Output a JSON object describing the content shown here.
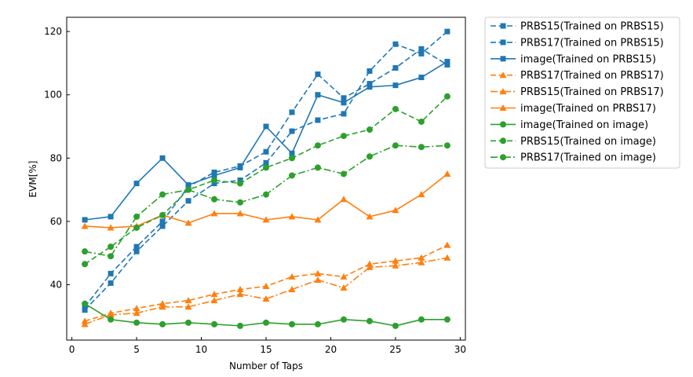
{
  "chart_data": {
    "type": "line",
    "xlabel": "Number of Taps",
    "ylabel": "EVM[%]",
    "xlim": [
      -0.4,
      30.4
    ],
    "ylim": [
      22.5,
      124.5
    ],
    "xticks": [
      0,
      5,
      10,
      15,
      20,
      25,
      30
    ],
    "yticks": [
      40,
      60,
      80,
      100,
      120
    ],
    "grid": false,
    "legend_position": "outside-right",
    "x": [
      1,
      3,
      5,
      7,
      9,
      11,
      13,
      15,
      17,
      19,
      21,
      23,
      25,
      27,
      29
    ],
    "series": [
      {
        "name": "PRBS15(Trained on PRBS15)",
        "color": "#1f77b4",
        "linestyle": "dashed",
        "marker": "square",
        "values": [
          32,
          40.5,
          50.5,
          58.5,
          66.5,
          72,
          73,
          78.5,
          88.5,
          92,
          94,
          107.5,
          116,
          113,
          120
        ]
      },
      {
        "name": "PRBS17(Trained on PRBS15)",
        "color": "#1f77b4",
        "linestyle": "dashed",
        "marker": "square",
        "values": [
          33,
          43.5,
          52,
          60,
          71,
          75.5,
          77.5,
          82,
          94.5,
          106.5,
          99,
          103.5,
          108.5,
          114.5,
          109.5
        ]
      },
      {
        "name": "image(Trained on PRBS15)",
        "color": "#1f77b4",
        "linestyle": "solid",
        "marker": "square",
        "values": [
          60.5,
          61.5,
          72,
          80,
          71.5,
          74.5,
          77,
          90,
          81.5,
          100,
          97.5,
          102.5,
          103,
          105.5,
          110.5
        ]
      },
      {
        "name": "PRBS17(Trained on PRBS17)",
        "color": "#ff7f0e",
        "linestyle": "dashed",
        "marker": "triangle",
        "values": [
          28.5,
          31,
          32.5,
          34,
          35,
          37,
          38.5,
          39.5,
          42.5,
          43.5,
          42.5,
          46.5,
          47.5,
          48.5,
          52.5
        ]
      },
      {
        "name": "PRBS15(Trained on PRBS17)",
        "color": "#ff7f0e",
        "linestyle": "dashdot",
        "marker": "triangle",
        "values": [
          27.5,
          30.5,
          31,
          33,
          33,
          35,
          37,
          35.5,
          38.5,
          41.5,
          39,
          45.5,
          46,
          47,
          48.5
        ]
      },
      {
        "name": "image(Trained on PRBS17)",
        "color": "#ff7f0e",
        "linestyle": "solid",
        "marker": "triangle",
        "values": [
          58.5,
          58,
          58.5,
          62,
          59.5,
          62.5,
          62.5,
          60.5,
          61.5,
          60.5,
          67,
          61.5,
          63.5,
          68.5,
          75
        ]
      },
      {
        "name": "image(Trained on image)",
        "color": "#2ca02c",
        "linestyle": "solid",
        "marker": "circle",
        "values": [
          34,
          29,
          28,
          27.5,
          28,
          27.5,
          27,
          28,
          27.5,
          27.5,
          29,
          28.5,
          27,
          29,
          29
        ]
      },
      {
        "name": "PRBS15(Trained on image)",
        "color": "#2ca02c",
        "linestyle": "dashed",
        "marker": "circle",
        "values": [
          46.5,
          52,
          58,
          62,
          70,
          73,
          72,
          77,
          80,
          84,
          87,
          89,
          95.5,
          91.5,
          99.5
        ]
      },
      {
        "name": "PRBS17(Trained on image)",
        "color": "#2ca02c",
        "linestyle": "dashdot",
        "marker": "circle",
        "values": [
          50.5,
          49,
          61.5,
          68.5,
          70,
          67,
          66,
          68.5,
          74.5,
          77,
          75,
          80.5,
          84,
          83.5,
          84
        ]
      }
    ]
  }
}
